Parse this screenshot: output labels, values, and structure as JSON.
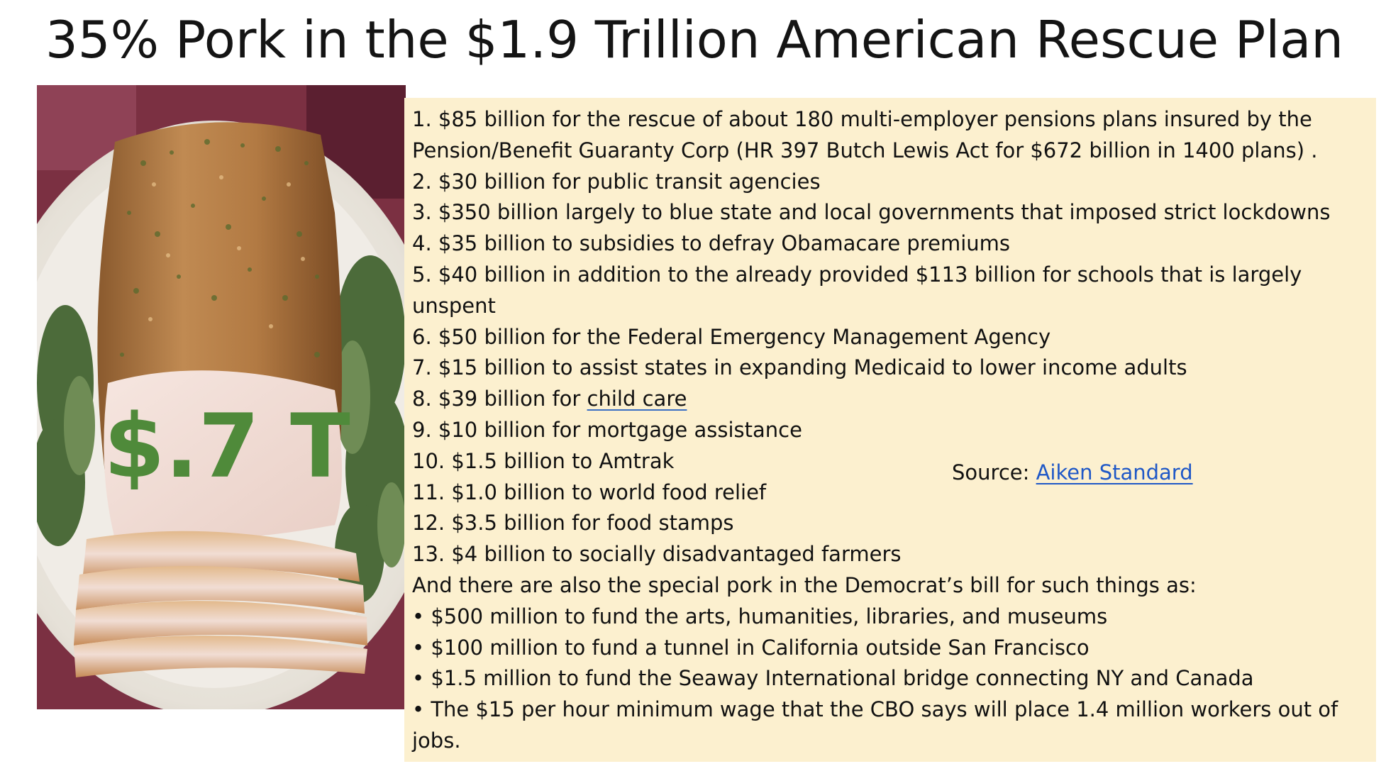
{
  "title": "35% Pork in the $1.9 Trillion American Rescue Plan",
  "image_overlay": "$.7 T",
  "list_items": [
    {
      "number": "1.",
      "text": "$85 billion for the rescue of about 180 multi-employer pensions plans insured by the"
    },
    {
      "number": "",
      "text": "Pension/Benefit Guaranty Corp (HR 397 Butch Lewis Act for $672 billion in 1400 plans) ."
    },
    {
      "number": "2.",
      "text": "$30 billion for public transit agencies"
    },
    {
      "number": "3.",
      "text": "$350 billion largely to blue state and local governments that imposed strict lockdowns"
    },
    {
      "number": "4.",
      "text": "$35 billion to subsidies to defray Obamacare premiums"
    },
    {
      "number": "5.",
      "text": "$40 billion in addition to the already provided $113 billion for schools that is largely"
    },
    {
      "number": "",
      "text": "unspent"
    },
    {
      "number": "6.",
      "text": "$50 billion for the Federal Emergency Management Agency"
    },
    {
      "number": "7.",
      "text": "$15 billion to assist states in expanding Medicaid to lower income adults"
    },
    {
      "number": "8.",
      "text": "$39 billion for ",
      "link": "child care"
    },
    {
      "number": "9.",
      "text": "$10 billion for mortgage assistance"
    },
    {
      "number": "10.",
      "text": "$1.5 billion to Amtrak"
    },
    {
      "number": "11.",
      "text": "$1.0 billion to world food relief"
    },
    {
      "number": "12.",
      "text": "$3.5 billion for food stamps"
    },
    {
      "number": "13.",
      "text": "$4 billion to socially disadvantaged farmers"
    }
  ],
  "special_intro": "And there are also the special pork in the Democrat’s bill for such things as:",
  "bullet_symbol": "•",
  "bullets": [
    "$500 million to fund the arts, humanities, libraries, and museums",
    "$100 million to fund a tunnel in California outside San Francisco",
    "$1.5 million to fund the Seaway International bridge connecting NY and Canada",
    "The $15 per hour minimum wage that the CBO says will place 1.4 million workers out of"
  ],
  "bullet_continuation": "jobs.",
  "source": {
    "label": "Source: ",
    "link_text": "Aiken Standard"
  },
  "colors": {
    "panel_background": "#fcf0cf",
    "overlay_text": "#4f8a3a",
    "link": "#1f58c7"
  }
}
